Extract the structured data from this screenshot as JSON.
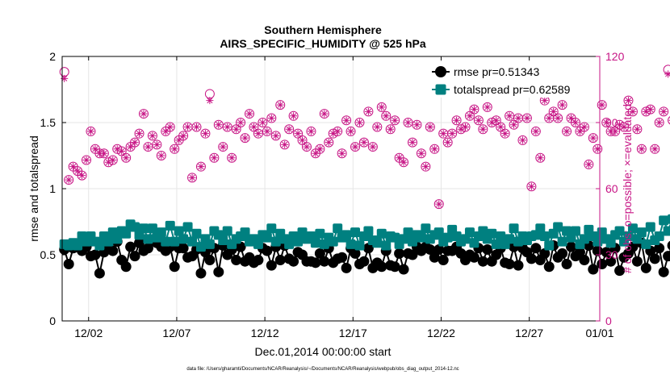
{
  "chart_data": {
    "type": "line",
    "title": "Southern Hemisphere",
    "subtitle": "AIRS_SPECIFIC_HUMIDITY @ 525 hPa",
    "xlabel": "Dec.01,2014 00:00:00 start",
    "ylabel_left": "rmse and totalspread",
    "ylabel_right": "# of obs: o=possible; ×=evaluated",
    "footnote": "data file: /Users/gharamti/Documents/NCAR/Reanalysis/~/Documents/NCAR/Reanalysis/webpub/obs_diag_output_2014-12.nc",
    "xlim": [
      0.5,
      31.0
    ],
    "ylim_left": [
      0,
      2
    ],
    "ylim_right": [
      0,
      120
    ],
    "x_ticks": [
      {
        "value": 2,
        "label": "12/02"
      },
      {
        "value": 7,
        "label": "12/07"
      },
      {
        "value": 12,
        "label": "12/12"
      },
      {
        "value": 17,
        "label": "12/17"
      },
      {
        "value": 22,
        "label": "12/22"
      },
      {
        "value": 27,
        "label": "12/27"
      },
      {
        "value": 31,
        "label": "01/01"
      }
    ],
    "y_ticks_left": [
      {
        "value": 0,
        "label": "0"
      },
      {
        "value": 0.5,
        "label": "0.5"
      },
      {
        "value": 1,
        "label": "1"
      },
      {
        "value": 1.5,
        "label": "1.5"
      },
      {
        "value": 2,
        "label": "2"
      }
    ],
    "y_ticks_right": [
      {
        "value": 0,
        "label": "0"
      },
      {
        "value": 30,
        "label": "30"
      },
      {
        "value": 60,
        "label": "60"
      },
      {
        "value": 90,
        "label": "90"
      },
      {
        "value": 120,
        "label": "120"
      }
    ],
    "colors": {
      "rmse": "#000000",
      "totalspread": "#008080",
      "obs": "#c71585",
      "axis": "#000000",
      "grid": "#e6e6e6"
    },
    "x_start": 0.625,
    "x_step": 0.25,
    "series": [
      {
        "name": "rmse",
        "legend": "rmse pr=0.51343",
        "axis": "left",
        "values": [
          0.54,
          0.43,
          0.55,
          0.56,
          0.53,
          0.56,
          0.49,
          0.5,
          0.36,
          0.52,
          0.56,
          0.53,
          0.6,
          0.46,
          0.41,
          0.56,
          0.49,
          0.59,
          0.53,
          0.55,
          0.61,
          0.59,
          0.56,
          0.53,
          0.56,
          0.41,
          0.55,
          0.55,
          0.48,
          0.49,
          0.54,
          0.36,
          0.52,
          0.46,
          0.55,
          0.37,
          0.57,
          0.5,
          0.54,
          0.46,
          0.56,
          0.45,
          0.48,
          0.44,
          0.46,
          0.55,
          0.53,
          0.42,
          0.56,
          0.46,
          0.57,
          0.47,
          0.45,
          0.52,
          0.5,
          0.45,
          0.45,
          0.44,
          0.51,
          0.45,
          0.55,
          0.44,
          0.47,
          0.48,
          0.4,
          0.55,
          0.51,
          0.43,
          0.45,
          0.55,
          0.4,
          0.44,
          0.41,
          0.53,
          0.42,
          0.41,
          0.51,
          0.39,
          0.51,
          0.5,
          0.56,
          0.53,
          0.56,
          0.54,
          0.48,
          0.54,
          0.46,
          0.53,
          0.53,
          0.56,
          0.51,
          0.46,
          0.5,
          0.48,
          0.55,
          0.45,
          0.54,
          0.45,
          0.5,
          0.55,
          0.44,
          0.43,
          0.56,
          0.42,
          0.55,
          0.52,
          0.47,
          0.55,
          0.46,
          0.51,
          0.41,
          0.57,
          0.48,
          0.51,
          0.43,
          0.56,
          0.49,
          0.52,
          0.46,
          0.57,
          0.39,
          0.53,
          0.43,
          0.52,
          0.45,
          0.55,
          0.38,
          0.48,
          0.51,
          0.56,
          0.45,
          0.59,
          0.4,
          0.53,
          0.47,
          0.55,
          0.37,
          0.49,
          0.57,
          0.52,
          0.47,
          0.43,
          0.48,
          0.46,
          0.53,
          0.46,
          0.57,
          0.46,
          0.53,
          0.56,
          0.35,
          0.45,
          0.49,
          0.55,
          0.43,
          0.5,
          0.38,
          0.44,
          0.48,
          0.5,
          0.51,
          0.51,
          0.53,
          0.52,
          0.52,
          0.52,
          0.53,
          0.51
        ]
      },
      {
        "name": "totalspread",
        "legend": "totalspread pr=0.62589",
        "axis": "left",
        "values": [
          0.58,
          0.57,
          0.59,
          0.57,
          0.64,
          0.6,
          0.64,
          0.6,
          0.57,
          0.64,
          0.6,
          0.67,
          0.62,
          0.68,
          0.66,
          0.73,
          0.71,
          0.65,
          0.7,
          0.62,
          0.7,
          0.63,
          0.67,
          0.6,
          0.72,
          0.6,
          0.68,
          0.62,
          0.71,
          0.6,
          0.66,
          0.56,
          0.62,
          0.58,
          0.68,
          0.65,
          0.61,
          0.68,
          0.58,
          0.62,
          0.64,
          0.67,
          0.6,
          0.62,
          0.58,
          0.65,
          0.63,
          0.7,
          0.6,
          0.66,
          0.62,
          0.58,
          0.64,
          0.6,
          0.67,
          0.62,
          0.64,
          0.59,
          0.66,
          0.58,
          0.63,
          0.6,
          0.7,
          0.63,
          0.65,
          0.58,
          0.67,
          0.57,
          0.64,
          0.68,
          0.61,
          0.59,
          0.66,
          0.57,
          0.64,
          0.63,
          0.58,
          0.62,
          0.67,
          0.6,
          0.65,
          0.63,
          0.7,
          0.62,
          0.65,
          0.67,
          0.6,
          0.63,
          0.69,
          0.64,
          0.6,
          0.62,
          0.67,
          0.59,
          0.64,
          0.68,
          0.62,
          0.66,
          0.58,
          0.64,
          0.58,
          0.62,
          0.7,
          0.6,
          0.64,
          0.61,
          0.64,
          0.65,
          0.7,
          0.64,
          0.57,
          0.66,
          0.71,
          0.6,
          0.68,
          0.63,
          0.68,
          0.58,
          0.62,
          0.69,
          0.64,
          0.6,
          0.67,
          0.62,
          0.59,
          0.65,
          0.68,
          0.6,
          0.64,
          0.7,
          0.62,
          0.67,
          0.58,
          0.71,
          0.61,
          0.64,
          0.76,
          0.68,
          0.77,
          0.65,
          0.62,
          0.67,
          0.6,
          0.64,
          0.59,
          0.63,
          0.66,
          0.6,
          0.63,
          0.6,
          0.57,
          0.59,
          0.61,
          0.63,
          0.58,
          0.63,
          0.61,
          0.59,
          0.58,
          0.62,
          0.6,
          0.61,
          0.62,
          0.62,
          0.63,
          0.62,
          0.62,
          0.61
        ]
      },
      {
        "name": "obs_possible",
        "axis": "right",
        "values": [
          113,
          64,
          70,
          68,
          66,
          73,
          86,
          78,
          76,
          76,
          72,
          73,
          78,
          77,
          74,
          79,
          81,
          85,
          94,
          79,
          84,
          80,
          75,
          86,
          88,
          78,
          82,
          84,
          88,
          65,
          88,
          70,
          85,
          103,
          74,
          89,
          79,
          88,
          74,
          87,
          90,
          83,
          94,
          88,
          85,
          90,
          86,
          92,
          84,
          98,
          80,
          87,
          93,
          85,
          82,
          79,
          86,
          76,
          78,
          94,
          81,
          85,
          86,
          76,
          91,
          86,
          79,
          90,
          81,
          95,
          79,
          88,
          97,
          93,
          87,
          91,
          74,
          72,
          90,
          81,
          89,
          76,
          70,
          88,
          78,
          53,
          85,
          81,
          85,
          91,
          87,
          88,
          93,
          96,
          91,
          87,
          97,
          90,
          91,
          88,
          85,
          93,
          89,
          92,
          82,
          92,
          61,
          86,
          74,
          100,
          92,
          95,
          92,
          98,
          86,
          92,
          90,
          86,
          88,
          71,
          83,
          78,
          98,
          90,
          86,
          86,
          89,
          88,
          100,
          95,
          87,
          78,
          95,
          96,
          78,
          90,
          95,
          114,
          91,
          80,
          78,
          92,
          92,
          92,
          86,
          90,
          79,
          80,
          85,
          86,
          79,
          82,
          86,
          87,
          88,
          87,
          89,
          68,
          86,
          80,
          90,
          81,
          86,
          101,
          79,
          0
        ]
      },
      {
        "name": "obs_evaluated",
        "axis": "right",
        "values": [
          110,
          64,
          70,
          68,
          66,
          73,
          86,
          78,
          76,
          76,
          72,
          73,
          78,
          77,
          74,
          79,
          81,
          85,
          94,
          79,
          84,
          80,
          75,
          86,
          88,
          78,
          82,
          84,
          88,
          65,
          88,
          70,
          85,
          100,
          74,
          89,
          79,
          88,
          74,
          87,
          90,
          83,
          94,
          88,
          85,
          90,
          86,
          92,
          84,
          98,
          80,
          87,
          93,
          85,
          82,
          79,
          86,
          76,
          78,
          94,
          81,
          85,
          86,
          76,
          91,
          86,
          79,
          90,
          81,
          95,
          79,
          88,
          97,
          93,
          87,
          91,
          74,
          72,
          90,
          81,
          89,
          76,
          70,
          88,
          78,
          53,
          85,
          81,
          85,
          91,
          87,
          88,
          93,
          96,
          91,
          87,
          97,
          90,
          91,
          88,
          85,
          93,
          89,
          92,
          82,
          92,
          61,
          86,
          74,
          100,
          92,
          95,
          92,
          98,
          86,
          92,
          90,
          86,
          88,
          71,
          83,
          78,
          98,
          90,
          86,
          86,
          89,
          88,
          100,
          95,
          87,
          78,
          95,
          96,
          78,
          90,
          95,
          112,
          91,
          80,
          78,
          92,
          92,
          92,
          86,
          90,
          79,
          80,
          85,
          86,
          79,
          82,
          86,
          87,
          88,
          87,
          89,
          68,
          86,
          80,
          90,
          81,
          86,
          98,
          79,
          0
        ]
      }
    ]
  }
}
